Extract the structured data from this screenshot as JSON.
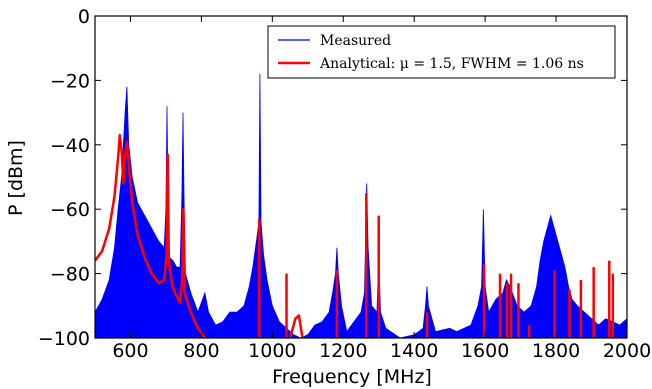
{
  "chart_data": {
    "type": "line",
    "title": "",
    "xlabel": "Frequency [MHz]",
    "ylabel": "P [dBm]",
    "xlim": [
      500,
      2000
    ],
    "ylim": [
      -100,
      0
    ],
    "xticks": [
      600,
      800,
      1000,
      1200,
      1400,
      1600,
      1800,
      2000
    ],
    "yticks": [
      0,
      -20,
      -40,
      -60,
      -80,
      -100
    ],
    "xtick_labels": [
      "600",
      "800",
      "1000",
      "1200",
      "1400",
      "1600",
      "1800",
      "2000"
    ],
    "ytick_labels": [
      "0",
      "−20",
      "−40",
      "−60",
      "−80",
      "−100"
    ],
    "grid": false,
    "legend_position": "top-right",
    "series": [
      {
        "name": "Measured",
        "color": "#0000ff",
        "style": "filled-spectrum",
        "envelope": [
          [
            500,
            -92
          ],
          [
            520,
            -88
          ],
          [
            540,
            -82
          ],
          [
            555,
            -72
          ],
          [
            565,
            -60
          ],
          [
            575,
            -50
          ],
          [
            580,
            -40
          ],
          [
            585,
            -30
          ],
          [
            590,
            -22
          ],
          [
            595,
            -40
          ],
          [
            605,
            -50
          ],
          [
            620,
            -58
          ],
          [
            640,
            -62
          ],
          [
            660,
            -66
          ],
          [
            680,
            -70
          ],
          [
            695,
            -72
          ],
          [
            700,
            -60
          ],
          [
            703,
            -28
          ],
          [
            706,
            -60
          ],
          [
            710,
            -75
          ],
          [
            720,
            -76
          ],
          [
            730,
            -78
          ],
          [
            740,
            -78
          ],
          [
            745,
            -56
          ],
          [
            748,
            -30
          ],
          [
            751,
            -56
          ],
          [
            755,
            -80
          ],
          [
            770,
            -86
          ],
          [
            790,
            -92
          ],
          [
            810,
            -86
          ],
          [
            820,
            -92
          ],
          [
            840,
            -96
          ],
          [
            860,
            -95
          ],
          [
            880,
            -92
          ],
          [
            900,
            -92
          ],
          [
            920,
            -90
          ],
          [
            935,
            -84
          ],
          [
            945,
            -78
          ],
          [
            955,
            -70
          ],
          [
            962,
            -64
          ],
          [
            965,
            -18
          ],
          [
            968,
            -64
          ],
          [
            975,
            -74
          ],
          [
            985,
            -82
          ],
          [
            1000,
            -90
          ],
          [
            1020,
            -95
          ],
          [
            1040,
            -97
          ],
          [
            1060,
            -99
          ],
          [
            1080,
            -100
          ],
          [
            1100,
            -99
          ],
          [
            1120,
            -96
          ],
          [
            1140,
            -95
          ],
          [
            1160,
            -92
          ],
          [
            1170,
            -86
          ],
          [
            1178,
            -80
          ],
          [
            1182,
            -72
          ],
          [
            1186,
            -80
          ],
          [
            1195,
            -90
          ],
          [
            1210,
            -98
          ],
          [
            1230,
            -95
          ],
          [
            1250,
            -92
          ],
          [
            1260,
            -86
          ],
          [
            1266,
            -52
          ],
          [
            1270,
            -72
          ],
          [
            1280,
            -90
          ],
          [
            1295,
            -92
          ],
          [
            1300,
            -74
          ],
          [
            1305,
            -92
          ],
          [
            1320,
            -97
          ],
          [
            1360,
            -100
          ],
          [
            1400,
            -99
          ],
          [
            1425,
            -97
          ],
          [
            1432,
            -90
          ],
          [
            1436,
            -84
          ],
          [
            1440,
            -90
          ],
          [
            1460,
            -98
          ],
          [
            1500,
            -97
          ],
          [
            1520,
            -98
          ],
          [
            1560,
            -96
          ],
          [
            1580,
            -90
          ],
          [
            1590,
            -84
          ],
          [
            1595,
            -60
          ],
          [
            1600,
            -84
          ],
          [
            1610,
            -92
          ],
          [
            1630,
            -88
          ],
          [
            1650,
            -86
          ],
          [
            1660,
            -82
          ],
          [
            1670,
            -84
          ],
          [
            1690,
            -90
          ],
          [
            1710,
            -92
          ],
          [
            1730,
            -90
          ],
          [
            1745,
            -84
          ],
          [
            1755,
            -76
          ],
          [
            1765,
            -70
          ],
          [
            1775,
            -66
          ],
          [
            1785,
            -62
          ],
          [
            1795,
            -66
          ],
          [
            1805,
            -70
          ],
          [
            1815,
            -74
          ],
          [
            1825,
            -78
          ],
          [
            1835,
            -84
          ],
          [
            1845,
            -88
          ],
          [
            1860,
            -90
          ],
          [
            1880,
            -92
          ],
          [
            1900,
            -94
          ],
          [
            1920,
            -96
          ],
          [
            1940,
            -94
          ],
          [
            1960,
            -95
          ],
          [
            1980,
            -96
          ],
          [
            2000,
            -94
          ]
        ]
      },
      {
        "name": "Analytical: μ = 1.5, FWHM = 1.06 ns",
        "color": "#ff0000",
        "style": "line",
        "points": [
          [
            500,
            -76
          ],
          [
            520,
            -73
          ],
          [
            540,
            -66
          ],
          [
            555,
            -56
          ],
          [
            565,
            -44
          ],
          [
            570,
            -37
          ],
          [
            575,
            -42
          ],
          [
            580,
            -52
          ],
          [
            585,
            -44
          ],
          [
            590,
            -39
          ],
          [
            595,
            -46
          ],
          [
            605,
            -58
          ],
          [
            620,
            -68
          ],
          [
            640,
            -75
          ],
          [
            660,
            -80
          ],
          [
            680,
            -83
          ],
          [
            695,
            -82
          ],
          [
            702,
            -74
          ],
          [
            705,
            -43
          ],
          [
            708,
            -76
          ],
          [
            718,
            -84
          ],
          [
            730,
            -87
          ],
          [
            740,
            -89
          ],
          [
            746,
            -82
          ],
          [
            749,
            -60
          ],
          [
            752,
            -86
          ],
          [
            770,
            -92
          ],
          [
            790,
            -97
          ],
          [
            810,
            -100
          ]
        ],
        "spikes": [
          [
            963,
            -63
          ],
          [
            1040,
            -80
          ],
          [
            1182,
            -79
          ],
          [
            1265,
            -55
          ],
          [
            1300,
            -62
          ],
          [
            1436,
            -92
          ],
          [
            1597,
            -77
          ],
          [
            1642,
            -80
          ],
          [
            1662,
            -83
          ],
          [
            1673,
            -80
          ],
          [
            1694,
            -83
          ],
          [
            1724,
            -96
          ],
          [
            1796,
            -79
          ],
          [
            1838,
            -85
          ],
          [
            1870,
            -82
          ],
          [
            1906,
            -78
          ],
          [
            1950,
            -76
          ],
          [
            1960,
            -80
          ]
        ],
        "bump": [
          [
            1050,
            -100
          ],
          [
            1065,
            -94
          ],
          [
            1075,
            -93
          ],
          [
            1085,
            -100
          ]
        ]
      }
    ]
  }
}
